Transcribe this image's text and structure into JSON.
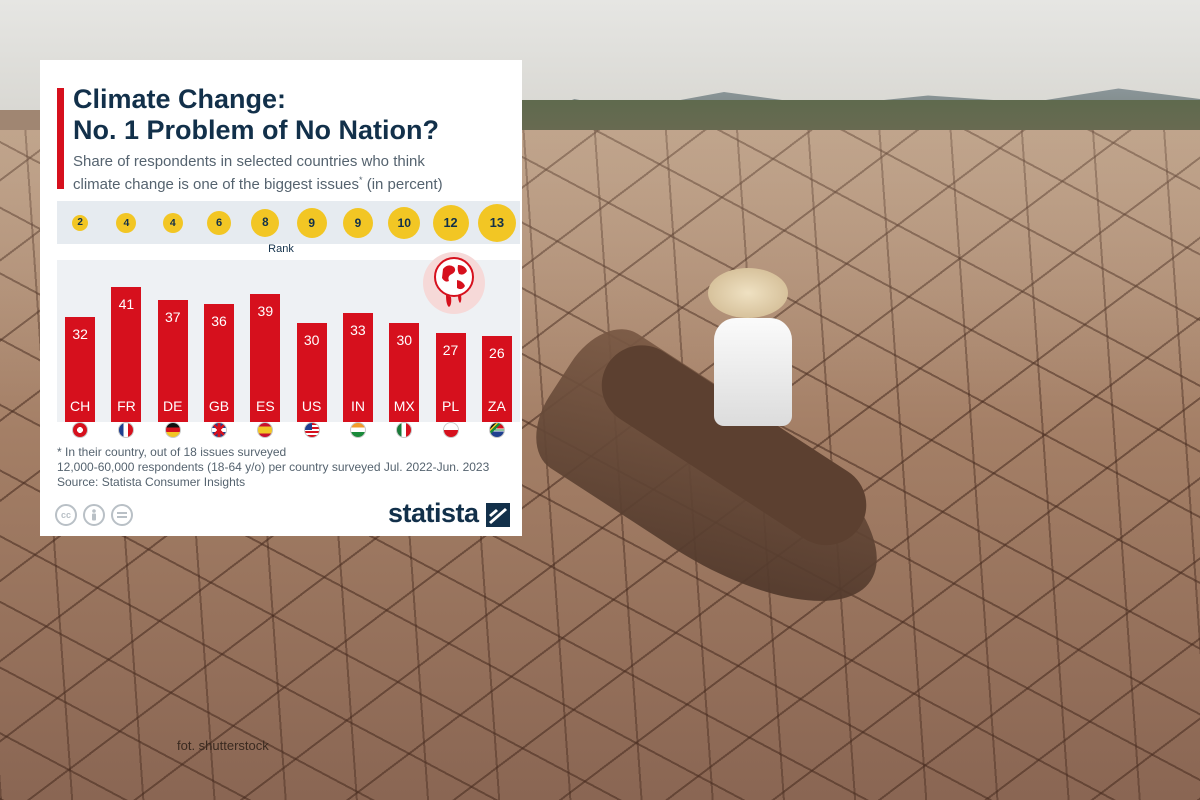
{
  "header": {
    "title_line1": "Climate Change:",
    "title_line2": "No. 1 Problem of No Nation?",
    "subtitle_line1": "Share of respondents in selected countries who think",
    "subtitle_line2": "climate change is one of the biggest issues",
    "subtitle_mark": "*",
    "subtitle_tail": " (in percent)"
  },
  "rank_label": "Rank",
  "footnote_line1": "* In their country, out of 18 issues surveyed",
  "footnote_line2": "12,000-60,000 respondents (18-64 y/o) per country surveyed Jul. 2022-Jun. 2023",
  "source": "Source: Statista Consumer Insights",
  "brand": "statista",
  "license_icons": [
    "cc-icon",
    "by-icon",
    "nd-icon"
  ],
  "photo_credit": "fot. shutterstock",
  "colors": {
    "bar": "#d6101d",
    "rank": "#f2c624",
    "navy": "#12304a"
  },
  "chart_data": {
    "type": "bar",
    "categories": [
      "CH",
      "FR",
      "DE",
      "GB",
      "ES",
      "US",
      "IN",
      "MX",
      "PL",
      "ZA"
    ],
    "values": [
      32,
      41,
      37,
      36,
      39,
      30,
      33,
      30,
      27,
      26
    ],
    "ranks": [
      2,
      4,
      4,
      6,
      8,
      9,
      9,
      10,
      12,
      13
    ],
    "flags": [
      "swiss-flag-icon",
      "french-flag-icon",
      "german-flag-icon",
      "uk-flag-icon",
      "spanish-flag-icon",
      "us-flag-icon",
      "indian-flag-icon",
      "mexican-flag-icon",
      "polish-flag-icon",
      "south-african-flag-icon"
    ],
    "ylim": [
      0,
      45
    ],
    "grid": false,
    "legend": "none"
  }
}
